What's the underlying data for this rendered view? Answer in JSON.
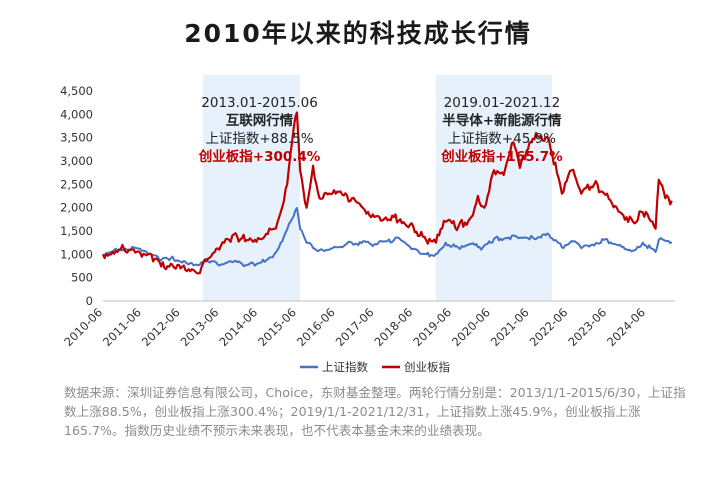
{
  "title": "2010年以来的科技成长行情",
  "chart_data": {
    "type": "line",
    "ylim": [
      0,
      4500
    ],
    "y_ticks": [
      "0",
      "500",
      "1,000",
      "1,500",
      "2,000",
      "2,500",
      "3,000",
      "3,500",
      "4,000",
      "4,500"
    ],
    "x_range": [
      "2010-06",
      "2025-03"
    ],
    "x_ticks": [
      "2010-06",
      "2011-06",
      "2012-06",
      "2013-06",
      "2014-06",
      "2015-06",
      "2016-06",
      "2017-06",
      "2018-06",
      "2019-06",
      "2020-06",
      "2021-06",
      "2022-06",
      "2023-06",
      "2024-06"
    ],
    "legend_position": "bottom",
    "grid": false,
    "highlight_periods": [
      {
        "start": "2013-01",
        "end": "2015-06",
        "color": "#e6f1fb",
        "lines": [
          {
            "text": "2013.01-2015.06",
            "color": "#222222",
            "bold": false
          },
          {
            "text": "互联网行情",
            "color": "#222222",
            "bold": true
          },
          {
            "text": "上证指数+88.5%",
            "color": "#222222",
            "bold": false
          },
          {
            "text": "创业板指+300.4%",
            "color": "#c00000",
            "bold": true
          }
        ]
      },
      {
        "start": "2019-01",
        "end": "2021-12",
        "color": "#e6f1fb",
        "lines": [
          {
            "text": "2019.01-2021.12",
            "color": "#222222",
            "bold": false
          },
          {
            "text": "半导体+新能源行情",
            "color": "#222222",
            "bold": true
          },
          {
            "text": "上证指数+45.9%",
            "color": "#222222",
            "bold": false
          },
          {
            "text": "创业板指+165.7%",
            "color": "#c00000",
            "bold": true
          }
        ]
      }
    ],
    "series": [
      {
        "name": "上证指数",
        "color": "#4472c4",
        "points": [
          [
            "2010-06",
            1000
          ],
          [
            "2010-10",
            1120
          ],
          [
            "2011-01",
            1120
          ],
          [
            "2011-04",
            1140
          ],
          [
            "2011-08",
            1000
          ],
          [
            "2011-12",
            880
          ],
          [
            "2012-03",
            920
          ],
          [
            "2012-07",
            860
          ],
          [
            "2012-11",
            780
          ],
          [
            "2013-02",
            900
          ],
          [
            "2013-06",
            760
          ],
          [
            "2013-10",
            830
          ],
          [
            "2014-03",
            780
          ],
          [
            "2014-07",
            830
          ],
          [
            "2014-11",
            1000
          ],
          [
            "2015-01",
            1250
          ],
          [
            "2015-04",
            1700
          ],
          [
            "2015-06",
            1990
          ],
          [
            "2015-07",
            1550
          ],
          [
            "2015-09",
            1250
          ],
          [
            "2016-01",
            1090
          ],
          [
            "2016-06",
            1150
          ],
          [
            "2016-11",
            1250
          ],
          [
            "2017-06",
            1220
          ],
          [
            "2017-12",
            1300
          ],
          [
            "2018-01",
            1360
          ],
          [
            "2018-06",
            1120
          ],
          [
            "2018-10",
            1000
          ],
          [
            "2019-01",
            1010
          ],
          [
            "2019-04",
            1250
          ],
          [
            "2019-08",
            1140
          ],
          [
            "2020-01",
            1200
          ],
          [
            "2020-03",
            1100
          ],
          [
            "2020-07",
            1330
          ],
          [
            "2021-02",
            1380
          ],
          [
            "2021-07",
            1360
          ],
          [
            "2021-12",
            1420
          ],
          [
            "2022-04",
            1150
          ],
          [
            "2022-08",
            1280
          ],
          [
            "2022-10",
            1130
          ],
          [
            "2023-05",
            1310
          ],
          [
            "2023-10",
            1200
          ],
          [
            "2024-02",
            1080
          ],
          [
            "2024-05",
            1250
          ],
          [
            "2024-09",
            1050
          ],
          [
            "2024-10",
            1310
          ],
          [
            "2025-02",
            1260
          ]
        ]
      },
      {
        "name": "创业板指",
        "color": "#c00000",
        "points": [
          [
            "2010-06",
            1000
          ],
          [
            "2010-09",
            1050
          ],
          [
            "2010-12",
            1200
          ],
          [
            "2011-02",
            1100
          ],
          [
            "2011-06",
            950
          ],
          [
            "2011-10",
            900
          ],
          [
            "2011-12",
            740
          ],
          [
            "2012-03",
            800
          ],
          [
            "2012-07",
            760
          ],
          [
            "2012-11",
            600
          ],
          [
            "2013-02",
            850
          ],
          [
            "2013-06",
            1100
          ],
          [
            "2013-10",
            1400
          ],
          [
            "2014-01",
            1350
          ],
          [
            "2014-06",
            1350
          ],
          [
            "2014-11",
            1550
          ],
          [
            "2015-01",
            1900
          ],
          [
            "2015-03",
            2500
          ],
          [
            "2015-05",
            3700
          ],
          [
            "2015-06",
            4040
          ],
          [
            "2015-07",
            2800
          ],
          [
            "2015-09",
            2000
          ],
          [
            "2015-11",
            2900
          ],
          [
            "2016-01",
            2200
          ],
          [
            "2016-06",
            2300
          ],
          [
            "2016-11",
            2200
          ],
          [
            "2017-06",
            1800
          ],
          [
            "2017-12",
            1800
          ],
          [
            "2018-02",
            1750
          ],
          [
            "2018-06",
            1600
          ],
          [
            "2018-10",
            1300
          ],
          [
            "2019-01",
            1250
          ],
          [
            "2019-04",
            1700
          ],
          [
            "2019-08",
            1600
          ],
          [
            "2019-12",
            1800
          ],
          [
            "2020-02",
            2250
          ],
          [
            "2020-04",
            2000
          ],
          [
            "2020-07",
            2800
          ],
          [
            "2020-10",
            2700
          ],
          [
            "2021-01",
            3400
          ],
          [
            "2021-03",
            2850
          ],
          [
            "2021-06",
            3400
          ],
          [
            "2021-08",
            3600
          ],
          [
            "2021-12",
            3450
          ],
          [
            "2022-04",
            2300
          ],
          [
            "2022-07",
            2800
          ],
          [
            "2022-10",
            2300
          ],
          [
            "2023-02",
            2500
          ],
          [
            "2023-06",
            2300
          ],
          [
            "2023-10",
            1900
          ],
          [
            "2024-02",
            1700
          ],
          [
            "2024-05",
            1900
          ],
          [
            "2024-09",
            1550
          ],
          [
            "2024-10",
            2600
          ],
          [
            "2024-12",
            2200
          ],
          [
            "2025-02",
            2150
          ]
        ]
      }
    ]
  },
  "source_note": "数据来源：深圳证券信息有限公司，Choice，东财基金整理。两轮行情分别是：2013/1/1-2015/6/30，上证指数上涨88.5%，创业板指上涨300.4%；2019/1/1-2021/12/31，上证指数上涨45.9%，创业板指上涨165.7%。指数历史业绩不预示未来表现，也不代表本基金未来的业绩表现。"
}
